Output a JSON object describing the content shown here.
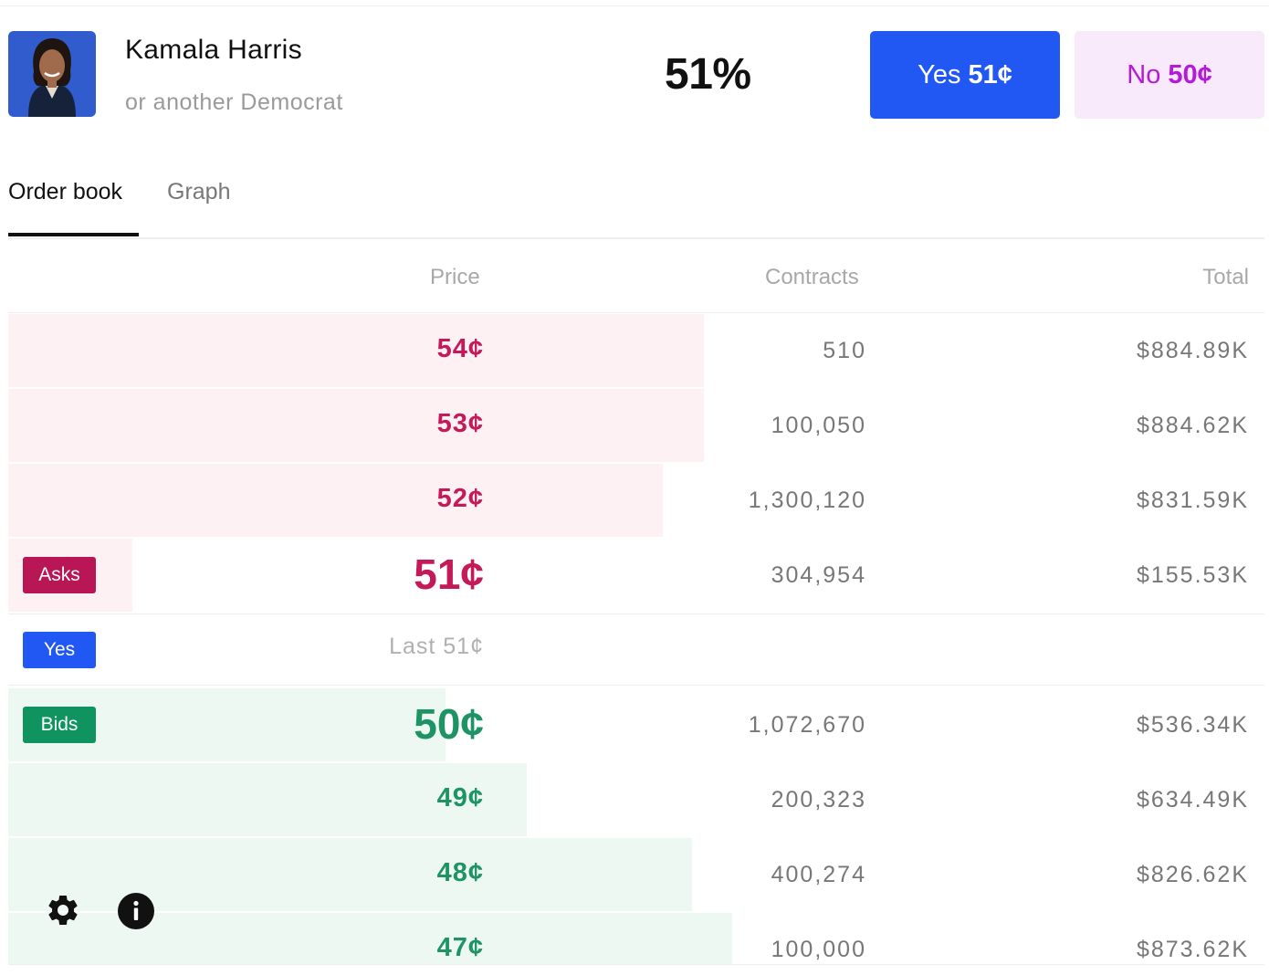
{
  "market": {
    "name": "Kamala Harris",
    "subtitle": "or another Democrat",
    "chance": "51%",
    "yes_label": "Yes",
    "yes_price": "51¢",
    "no_label": "No",
    "no_price": "50¢"
  },
  "tabs": [
    {
      "label": "Order book",
      "active": true
    },
    {
      "label": "Graph",
      "active": false
    }
  ],
  "orderbook": {
    "headers": {
      "price": "Price",
      "contracts": "Contracts",
      "total": "Total"
    },
    "asks": [
      {
        "price": "54¢",
        "contracts": "510",
        "total": "$884.89K",
        "depth": 0.554
      },
      {
        "price": "53¢",
        "contracts": "100,050",
        "total": "$884.62K",
        "depth": 0.554
      },
      {
        "price": "52¢",
        "contracts": "1,300,120",
        "total": "$831.59K",
        "depth": 0.521
      },
      {
        "price": "51¢",
        "contracts": "304,954",
        "total": "$155.53K",
        "depth": 0.099
      }
    ],
    "asks_label": "Asks",
    "yes_label": "Yes",
    "last_trade": "Last 51¢",
    "bids_label": "Bids",
    "bids": [
      {
        "price": "50¢",
        "contracts": "1,072,670",
        "total": "$536.34K",
        "depth": 0.348
      },
      {
        "price": "49¢",
        "contracts": "200,323",
        "total": "$634.49K",
        "depth": 0.413
      },
      {
        "price": "48¢",
        "contracts": "400,274",
        "total": "$826.62K",
        "depth": 0.544
      },
      {
        "price": "47¢",
        "contracts": "100,000",
        "total": "$873.62K",
        "depth": 0.576
      }
    ]
  },
  "colors": {
    "yes_button": "#2157f3",
    "no_button_bg": "#f8e9fb",
    "no_button_text": "#b51ad9",
    "ask": "#c41a5a",
    "bid": "#1e9464"
  },
  "icons": [
    "settings-gear-icon",
    "info-icon"
  ]
}
